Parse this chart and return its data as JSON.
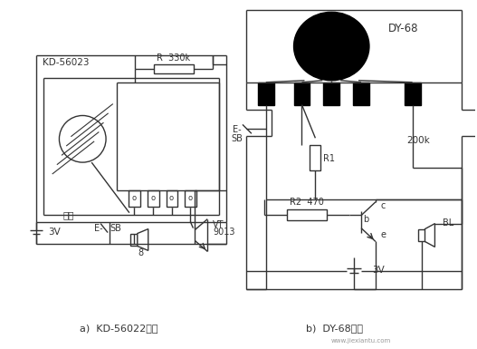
{
  "bg_color": "#ffffff",
  "line_color": "#333333",
  "text_color": "#333333",
  "title_a": "a)  KD-56022电路",
  "title_b": "b)  DY-68电路",
  "label_kd56023": "KD-56023",
  "label_r330k": "R  330k",
  "label_chufa": "触发",
  "label_e_sb_a": "E-",
  "label_sb_a": "SB",
  "label_3v_a": "3V",
  "label_8": "8",
  "label_vt": "VT",
  "label_9013": "9013",
  "label_dy68": "DY-68",
  "label_r1": "R1",
  "label_200k": "200k",
  "label_e_sb_b1": "E-",
  "label_e_sb_b2": "SB",
  "label_r2_470": "R2  470",
  "label_b": "b",
  "label_e": "e",
  "label_c": "c",
  "label_bl": "BL",
  "label_3v_b": "3V",
  "fig_width": 5.27,
  "fig_height": 3.85,
  "dpi": 100
}
